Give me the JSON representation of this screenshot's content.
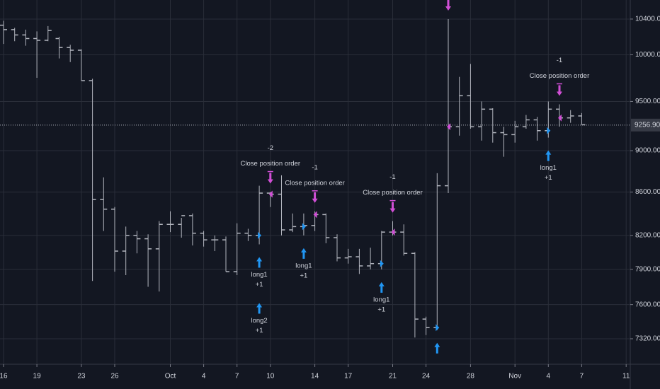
{
  "chart_data": {
    "type": "ohlc",
    "log_scale": true,
    "grid": true,
    "color": "#b2b5be",
    "ylim": [
      7118,
      10620
    ],
    "yticks": [
      {
        "value": 7320,
        "label": "7320.00"
      },
      {
        "value": 7600,
        "label": "7600.00"
      },
      {
        "value": 7900,
        "label": "7900.00"
      },
      {
        "value": 8200,
        "label": "8200.00"
      },
      {
        "value": 8600,
        "label": "8600.00"
      },
      {
        "value": 9000,
        "label": "9000.00"
      },
      {
        "value": 9500,
        "label": "9500.00"
      },
      {
        "value": 10000,
        "label": "10000.00"
      },
      {
        "value": 10400,
        "label": "10400.00"
      }
    ],
    "last_price": {
      "value": 9256.9,
      "label": "9256.90"
    },
    "categories": [
      "16",
      null,
      null,
      "19",
      null,
      null,
      null,
      "23",
      null,
      null,
      "26",
      null,
      null,
      null,
      null,
      "Oct",
      null,
      null,
      "4",
      null,
      null,
      "7",
      null,
      null,
      "10",
      null,
      null,
      null,
      "14",
      null,
      null,
      "17",
      null,
      null,
      null,
      "21",
      null,
      null,
      "24",
      null,
      null,
      null,
      "28",
      null,
      null,
      null,
      "Nov",
      null,
      null,
      "4",
      null,
      null,
      "7",
      null,
      null,
      null,
      "11"
    ],
    "open": [
      10330,
      10280,
      10220,
      10180,
      10160,
      10180,
      10080,
      10050,
      9720,
      8530,
      8440,
      8060,
      8200,
      8170,
      8080,
      8300,
      8300,
      8380,
      8220,
      8160,
      8160,
      7880,
      8220,
      8200,
      8590,
      8580,
      8250,
      8280,
      8290,
      8390,
      8180,
      8000,
      8010,
      7930,
      7950,
      8230,
      8230,
      8040,
      7480,
      7410,
      8660,
      9240,
      9560,
      9240,
      9420,
      9180,
      9160,
      9240,
      9310,
      9200,
      9420,
      9330,
      9350,
      null,
      null,
      null,
      null
    ],
    "high": [
      10380,
      10300,
      10280,
      10260,
      10320,
      10200,
      10110,
      10060,
      9740,
      8740,
      8460,
      8280,
      8240,
      8210,
      8330,
      8420,
      8360,
      8400,
      8240,
      8200,
      8190,
      8310,
      8260,
      8660,
      8600,
      8760,
      8400,
      8400,
      8420,
      8400,
      8210,
      8080,
      8080,
      8090,
      8240,
      8330,
      8300,
      8050,
      7500,
      8780,
      10400,
      9760,
      9900,
      9500,
      9430,
      9240,
      9300,
      9360,
      9340,
      9500,
      9470,
      9410,
      9380,
      null,
      null,
      null,
      null
    ],
    "low": [
      10120,
      10150,
      10100,
      9750,
      10150,
      9960,
      9920,
      9720,
      7800,
      8240,
      7880,
      7850,
      8040,
      7750,
      7710,
      8230,
      8180,
      8110,
      8100,
      8060,
      7880,
      7850,
      8150,
      8120,
      8460,
      8200,
      8230,
      8200,
      8240,
      8130,
      7970,
      7950,
      7860,
      7900,
      7900,
      8200,
      8020,
      7330,
      7350,
      7390,
      8590,
      9150,
      9220,
      9100,
      9080,
      8940,
      9080,
      9220,
      9100,
      9130,
      9240,
      9280,
      9260,
      null,
      null,
      null,
      null
    ],
    "close": [
      10280,
      10220,
      10180,
      10160,
      10270,
      10080,
      10050,
      9720,
      8530,
      8440,
      8060,
      8200,
      8170,
      8080,
      8300,
      8300,
      8380,
      8220,
      8160,
      8160,
      7880,
      8220,
      8200,
      8590,
      8580,
      8250,
      8280,
      8290,
      8390,
      8180,
      8000,
      8010,
      7930,
      7950,
      8230,
      8230,
      8040,
      7480,
      7410,
      8660,
      9240,
      9560,
      9240,
      9420,
      9180,
      9160,
      9240,
      9310,
      9200,
      9420,
      9330,
      9350,
      9260,
      null,
      null,
      null,
      null
    ],
    "signals": [
      {
        "kind": "long",
        "at": 23,
        "label": "long1",
        "qty": "+1"
      },
      {
        "kind": "long",
        "at": 23,
        "label": "long2",
        "qty": "+1"
      },
      {
        "kind": "close",
        "at": 24,
        "label": "Close position order",
        "qty": "-2"
      },
      {
        "kind": "long",
        "at": 27,
        "label": "long1",
        "qty": "+1"
      },
      {
        "kind": "close",
        "at": 28,
        "label": "Close position order",
        "qty": "-1"
      },
      {
        "kind": "long",
        "at": 34,
        "label": "long1",
        "qty": "+1"
      },
      {
        "kind": "close",
        "at": 35,
        "label": "Close position order",
        "qty": "-1"
      },
      {
        "kind": "long",
        "at": 39
      },
      {
        "kind": "close",
        "at": 40
      },
      {
        "kind": "long",
        "at": 49,
        "label": "long1",
        "qty": "+1"
      },
      {
        "kind": "close",
        "at": 50,
        "label": "Close position order",
        "qty": "-1"
      }
    ]
  }
}
